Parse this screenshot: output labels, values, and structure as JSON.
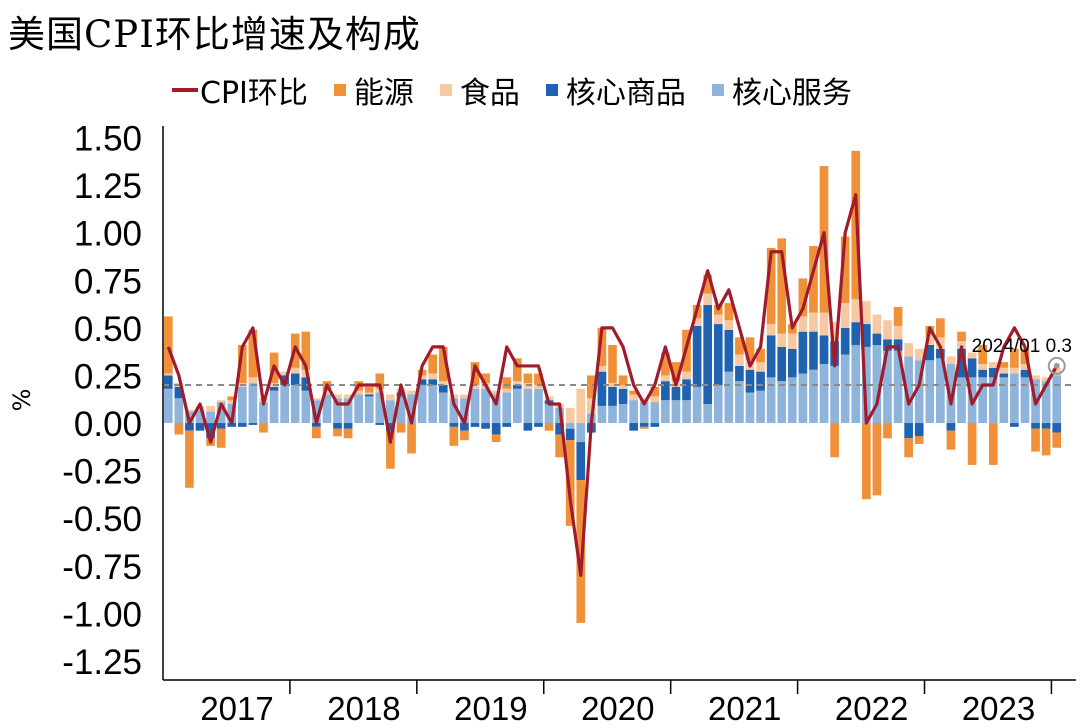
{
  "chart_data": {
    "type": "bar",
    "title": "美国CPI环比增速及构成",
    "ylabel": "%",
    "xlabel": "",
    "ylim": [
      -1.35,
      1.55
    ],
    "yticks": [
      "1.50",
      "1.25",
      "1.00",
      "0.75",
      "0.50",
      "0.25",
      "0.00",
      "-0.25",
      "-0.50",
      "-0.75",
      "-1.00",
      "-1.25"
    ],
    "year_labels": [
      "2017",
      "2018",
      "2019",
      "2020",
      "2021",
      "2022",
      "2023"
    ],
    "start_month": "2016-12",
    "reference_line": 0.2,
    "annotation": {
      "text": "2024/01  0.3",
      "x": "2024-01",
      "y": 0.3
    },
    "colors": {
      "cpi": "#a01c2c",
      "energy": "#f0913a",
      "food": "#f7c9a2",
      "core_goods": "#1f63b0",
      "core_services": "#8fb4dc"
    },
    "series": [
      {
        "name": "CPI环比",
        "type": "line",
        "values": [
          0.4,
          0.25,
          0.0,
          0.1,
          -0.1,
          0.1,
          0.0,
          0.4,
          0.5,
          0.1,
          0.3,
          0.2,
          0.4,
          0.3,
          0.0,
          0.2,
          0.1,
          0.1,
          0.2,
          0.2,
          0.2,
          -0.1,
          0.2,
          0.0,
          0.3,
          0.4,
          0.4,
          0.1,
          0.0,
          0.3,
          0.2,
          0.1,
          0.4,
          0.3,
          0.3,
          0.3,
          0.1,
          0.1,
          -0.4,
          -0.8,
          0.0,
          0.5,
          0.5,
          0.4,
          0.2,
          0.1,
          0.2,
          0.4,
          0.2,
          0.4,
          0.6,
          0.8,
          0.6,
          0.7,
          0.5,
          0.3,
          0.4,
          0.9,
          0.9,
          0.5,
          0.6,
          0.8,
          1.0,
          0.3,
          1.0,
          1.2,
          0.0,
          0.1,
          0.4,
          0.4,
          0.1,
          0.2,
          0.5,
          0.4,
          0.1,
          0.4,
          0.1,
          0.2,
          0.2,
          0.4,
          0.5,
          0.4,
          0.1,
          0.2,
          0.3
        ]
      },
      {
        "name": "能源",
        "values": [
          0.3,
          -0.06,
          -0.3,
          0.0,
          -0.04,
          -0.1,
          0.02,
          0.2,
          0.25,
          -0.05,
          0.16,
          0.0,
          0.18,
          0.2,
          -0.06,
          0.05,
          -0.04,
          -0.05,
          0.05,
          0.03,
          0.08,
          -0.2,
          -0.05,
          -0.16,
          0.03,
          0.1,
          0.18,
          -0.1,
          -0.05,
          0.12,
          0.05,
          -0.04,
          0.06,
          0.12,
          0.05,
          0.06,
          -0.04,
          -0.12,
          -0.45,
          -0.75,
          0.12,
          0.2,
          0.2,
          0.05,
          0.02,
          -0.01,
          0.05,
          0.12,
          0.1,
          0.22,
          0.07,
          0.1,
          0.05,
          0.09,
          0.09,
          0.12,
          0.07,
          0.4,
          0.5,
          0.05,
          0.2,
          0.35,
          0.77,
          -0.18,
          0.35,
          0.78,
          -0.4,
          -0.38,
          -0.08,
          0.1,
          -0.1,
          -0.04,
          0.05,
          0.1,
          -0.1,
          0.05,
          -0.22,
          0.1,
          -0.22,
          0.03,
          0.1,
          0.08,
          -0.12,
          -0.14,
          -0.08
        ]
      },
      {
        "name": "食品",
        "values": [
          0.01,
          0.02,
          0.01,
          0.02,
          0.03,
          0.01,
          0.02,
          0.02,
          0.03,
          0.02,
          0.02,
          0.02,
          0.03,
          0.04,
          0.01,
          0.02,
          0.02,
          0.02,
          0.02,
          0.01,
          0.02,
          0.03,
          0.02,
          0.02,
          0.02,
          0.03,
          0.02,
          0.02,
          0.02,
          0.02,
          0.03,
          0.02,
          0.02,
          0.02,
          0.03,
          0.02,
          0.02,
          0.02,
          0.08,
          0.18,
          0.08,
          0.03,
          0.02,
          0.02,
          0.03,
          0.02,
          0.03,
          0.03,
          0.03,
          0.04,
          0.04,
          0.06,
          0.05,
          0.05,
          0.06,
          0.05,
          0.05,
          0.06,
          0.07,
          0.08,
          0.08,
          0.1,
          0.12,
          0.1,
          0.13,
          0.12,
          0.12,
          0.1,
          0.1,
          0.07,
          0.07,
          0.06,
          0.05,
          0.06,
          0.04,
          0.04,
          0.03,
          0.03,
          0.03,
          0.03,
          0.03,
          0.03,
          0.02,
          0.02,
          0.04
        ]
      },
      {
        "name": "核心商品",
        "values": [
          0.07,
          0.06,
          -0.04,
          -0.04,
          -0.08,
          -0.03,
          -0.02,
          -0.02,
          -0.01,
          0.0,
          0.02,
          0.05,
          0.06,
          0.07,
          -0.02,
          0.0,
          -0.03,
          -0.03,
          0.0,
          0.01,
          -0.01,
          -0.04,
          0.02,
          0.0,
          0.03,
          0.03,
          0.04,
          -0.02,
          -0.04,
          -0.02,
          -0.03,
          -0.06,
          -0.02,
          0.02,
          -0.04,
          -0.02,
          0.02,
          -0.06,
          -0.06,
          -0.2,
          -0.05,
          0.18,
          0.1,
          0.08,
          -0.04,
          -0.02,
          -0.02,
          0.1,
          0.07,
          0.11,
          0.32,
          0.52,
          0.32,
          0.22,
          0.08,
          0.12,
          0.1,
          0.22,
          0.18,
          0.15,
          0.22,
          0.2,
          0.15,
          0.13,
          0.14,
          0.12,
          0.12,
          0.06,
          0.06,
          0.06,
          -0.08,
          -0.07,
          0.08,
          0.05,
          -0.04,
          0.15,
          0.1,
          0.04,
          0.05,
          0.02,
          -0.02,
          0.04,
          -0.03,
          -0.03,
          -0.05
        ]
      },
      {
        "name": "核心服务",
        "values": [
          0.18,
          0.13,
          0.06,
          0.07,
          0.06,
          0.11,
          0.1,
          0.19,
          0.21,
          0.11,
          0.17,
          0.2,
          0.2,
          0.17,
          0.12,
          0.15,
          0.13,
          0.13,
          0.15,
          0.14,
          0.16,
          0.12,
          0.14,
          0.15,
          0.2,
          0.2,
          0.16,
          0.13,
          0.13,
          0.18,
          0.18,
          0.15,
          0.16,
          0.18,
          0.18,
          0.18,
          0.1,
          0.08,
          -0.03,
          -0.1,
          0.05,
          0.09,
          0.09,
          0.1,
          0.12,
          0.11,
          0.11,
          0.12,
          0.12,
          0.12,
          0.19,
          0.1,
          0.2,
          0.27,
          0.22,
          0.16,
          0.17,
          0.24,
          0.22,
          0.24,
          0.26,
          0.28,
          0.31,
          0.3,
          0.36,
          0.41,
          0.4,
          0.41,
          0.38,
          0.38,
          0.35,
          0.33,
          0.33,
          0.34,
          0.31,
          0.24,
          0.24,
          0.24,
          0.24,
          0.24,
          0.26,
          0.24,
          0.23,
          0.22,
          0.25
        ]
      }
    ]
  }
}
